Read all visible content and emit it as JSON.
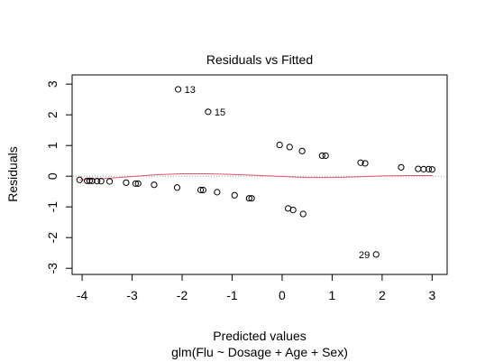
{
  "chart_data": {
    "type": "scatter",
    "title": "Residuals vs Fitted",
    "xlabel": "Predicted values",
    "subtitle": "glm(Flu ~ Dosage + Age + Sex)",
    "ylabel": "Residuals",
    "xlim": [
      -4.2,
      3.3
    ],
    "ylim": [
      -3.2,
      3.3
    ],
    "xticks": [
      -4,
      -3,
      -2,
      -1,
      0,
      1,
      2,
      3
    ],
    "yticks": [
      -3,
      -2,
      -1,
      0,
      1,
      2,
      3
    ],
    "xtick_labels": [
      "-4",
      "-3",
      "-2",
      "-1",
      "0",
      "1",
      "2",
      "3"
    ],
    "ytick_labels": [
      "-3",
      "-2",
      "-1",
      "0",
      "1",
      "2",
      "3"
    ],
    "zero_line": {
      "y": 0,
      "style": "dotted",
      "color": "#a0a0a0"
    },
    "points": [
      {
        "x": -4.05,
        "y": -0.12
      },
      {
        "x": -3.9,
        "y": -0.15
      },
      {
        "x": -3.85,
        "y": -0.15
      },
      {
        "x": -3.8,
        "y": -0.15
      },
      {
        "x": -3.7,
        "y": -0.16
      },
      {
        "x": -3.62,
        "y": -0.16
      },
      {
        "x": -3.45,
        "y": -0.17
      },
      {
        "x": -3.12,
        "y": -0.21
      },
      {
        "x": -2.93,
        "y": -0.24
      },
      {
        "x": -2.88,
        "y": -0.24
      },
      {
        "x": -2.56,
        "y": -0.28
      },
      {
        "x": -2.1,
        "y": -0.37
      },
      {
        "x": -1.63,
        "y": -0.45
      },
      {
        "x": -1.58,
        "y": -0.45
      },
      {
        "x": -1.3,
        "y": -0.52
      },
      {
        "x": -0.95,
        "y": -0.62
      },
      {
        "x": -0.66,
        "y": -0.72
      },
      {
        "x": -0.61,
        "y": -0.72
      },
      {
        "x": 0.12,
        "y": -1.05
      },
      {
        "x": 0.22,
        "y": -1.1
      },
      {
        "x": 0.42,
        "y": -1.23
      },
      {
        "x": -2.08,
        "y": 2.83
      },
      {
        "x": -1.48,
        "y": 2.1
      },
      {
        "x": -0.05,
        "y": 1.02
      },
      {
        "x": 0.15,
        "y": 0.95
      },
      {
        "x": 0.4,
        "y": 0.82
      },
      {
        "x": 0.8,
        "y": 0.67
      },
      {
        "x": 0.87,
        "y": 0.67
      },
      {
        "x": 1.57,
        "y": 0.44
      },
      {
        "x": 1.66,
        "y": 0.42
      },
      {
        "x": 2.38,
        "y": 0.29
      },
      {
        "x": 2.72,
        "y": 0.24
      },
      {
        "x": 2.83,
        "y": 0.23
      },
      {
        "x": 2.93,
        "y": 0.23
      },
      {
        "x": 3.0,
        "y": 0.22
      },
      {
        "x": 1.88,
        "y": -2.55
      }
    ],
    "labeled_points": [
      {
        "label": "13",
        "x": -2.08,
        "y": 2.83,
        "side": "right"
      },
      {
        "label": "15",
        "x": -1.48,
        "y": 2.1,
        "side": "right"
      },
      {
        "label": "29",
        "x": 1.88,
        "y": -2.55,
        "side": "left"
      }
    ],
    "smooth_line": {
      "color": "#df536b",
      "x": [
        -4.05,
        -3.5,
        -3.0,
        -2.5,
        -2.0,
        -1.5,
        -1.0,
        -0.5,
        0.0,
        0.5,
        1.0,
        1.5,
        2.0,
        2.5,
        3.0
      ],
      "y": [
        -0.12,
        -0.07,
        -0.01,
        0.05,
        0.08,
        0.08,
        0.06,
        0.03,
        -0.01,
        -0.04,
        -0.04,
        -0.02,
        0.01,
        0.02,
        0.02
      ]
    }
  }
}
